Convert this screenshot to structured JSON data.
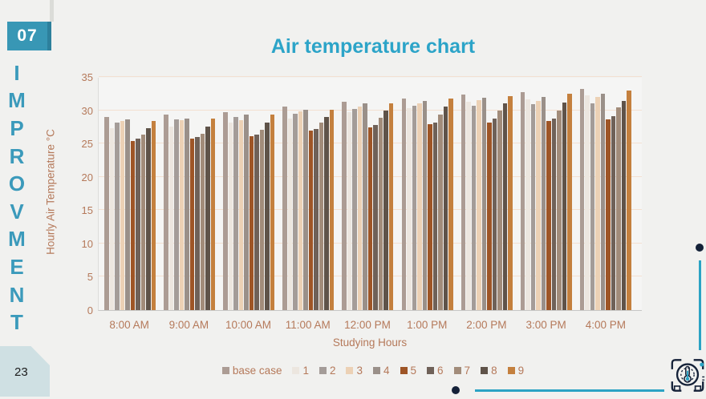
{
  "slide": {
    "badge": "07",
    "vertical_word": "IMPROVMENT",
    "page_number": "23"
  },
  "title": "Air temperature chart",
  "chart_data": {
    "type": "bar",
    "title": "Air temperature chart",
    "xlabel": "Studying Hours",
    "ylabel": "Hourly Air Temperature °C",
    "ylim": [
      0,
      35
    ],
    "yticks": [
      0,
      5,
      10,
      15,
      20,
      25,
      30,
      35
    ],
    "grid": true,
    "legend_position": "bottom",
    "categories": [
      "8:00 AM",
      "9:00 AM",
      "10:00 AM",
      "11:00 AM",
      "12:00 PM",
      "1:00 PM",
      "2:00 PM",
      "3:00 PM",
      "4:00 PM"
    ],
    "series": [
      {
        "name": "base case",
        "color": "#ac9c94",
        "values": [
          29.0,
          29.3,
          29.7,
          30.5,
          31.3,
          31.8,
          32.3,
          32.7,
          33.2
        ]
      },
      {
        "name": "1",
        "color": "#ece6df",
        "values": [
          27.3,
          27.6,
          28.2,
          28.8,
          29.7,
          30.3,
          31.3,
          31.6,
          32.2
        ]
      },
      {
        "name": "2",
        "color": "#a49c98",
        "values": [
          28.1,
          28.6,
          29.0,
          29.5,
          30.2,
          30.7,
          30.7,
          30.9,
          31.0
        ]
      },
      {
        "name": "3",
        "color": "#ecd1b5",
        "values": [
          28.4,
          28.5,
          28.5,
          29.8,
          30.6,
          31.0,
          31.5,
          31.4,
          32.0
        ]
      },
      {
        "name": "4",
        "color": "#9a9089",
        "values": [
          28.6,
          28.8,
          29.4,
          30.1,
          31.0,
          31.4,
          31.9,
          32.0,
          32.5
        ]
      },
      {
        "name": "5",
        "color": "#9e5526",
        "values": [
          25.4,
          25.7,
          26.1,
          26.9,
          27.4,
          27.9,
          28.2,
          28.4,
          28.6
        ]
      },
      {
        "name": "6",
        "color": "#6f6158",
        "values": [
          25.8,
          26.0,
          26.3,
          27.2,
          27.8,
          28.2,
          28.7,
          28.8,
          29.1
        ]
      },
      {
        "name": "7",
        "color": "#a28c7a",
        "values": [
          26.3,
          26.5,
          27.1,
          28.1,
          28.9,
          29.4,
          29.9,
          30.0,
          30.4
        ]
      },
      {
        "name": "8",
        "color": "#5f5349",
        "values": [
          27.3,
          27.5,
          28.2,
          29.0,
          29.9,
          30.6,
          31.0,
          31.1,
          31.4
        ]
      },
      {
        "name": "9",
        "color": "#c4803e",
        "values": [
          28.4,
          28.8,
          29.4,
          30.1,
          31.0,
          31.7,
          32.1,
          32.5,
          32.9
        ]
      }
    ]
  },
  "colors": {
    "accent_teal": "#2ba3c4",
    "title_teal": "#2ca4c8",
    "axis_text_brown": "#b5795a",
    "badge_bg": "#3897b5",
    "badge_shadow": "#2d809c",
    "page_tab_bg": "#cfe0e3",
    "dot_navy": "#142138",
    "gridline": "#f3e0d1",
    "background": "#f1f1ef"
  },
  "icons": {
    "bottom_right": "thermometer-gauge-icon"
  }
}
